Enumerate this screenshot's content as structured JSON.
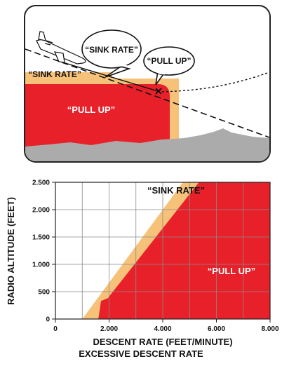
{
  "top_scene": {
    "bubble_sink": "“SINK RATE”",
    "bubble_pull": "“PULL UP”",
    "zone_sink": "“SINK RATE”",
    "zone_pull": "“PULL UP”"
  },
  "chart_data": {
    "type": "area",
    "title": "",
    "xlabel": "DESCENT RATE (FEET/MINUTE)",
    "ylabel": "RADIO ALTITUDE (FEET)",
    "xlim": [
      0,
      8000
    ],
    "ylim": [
      0,
      2500
    ],
    "x_ticks": [
      0,
      2000,
      4000,
      6000,
      8000
    ],
    "x_tick_labels": [
      "0",
      "2.000",
      "4.000",
      "6.000",
      "8.000"
    ],
    "y_ticks": [
      0,
      500,
      1000,
      1500,
      2000,
      2500
    ],
    "y_tick_labels": [
      "0",
      "500",
      "1.000",
      "1.500",
      "2.000",
      "2.500"
    ],
    "grid": true,
    "regions": [
      {
        "name": "“SINK RATE”",
        "color": "#F6C27A",
        "points": [
          [
            1000,
            0
          ],
          [
            8000,
            0
          ],
          [
            8000,
            2500
          ],
          [
            4750,
            2500
          ]
        ]
      },
      {
        "name": "“PULL UP”",
        "color": "#E8202A",
        "points": [
          [
            1600,
            0
          ],
          [
            8000,
            0
          ],
          [
            8000,
            2500
          ],
          [
            5350,
            2500
          ],
          [
            1950,
            380
          ],
          [
            1700,
            330
          ]
        ]
      }
    ]
  },
  "caption": "EXCESSIVE DESCENT RATE",
  "colors": {
    "pull_up": "#E8202A",
    "sink_rate": "#F6C27A",
    "terrain": "#ABABAB"
  }
}
